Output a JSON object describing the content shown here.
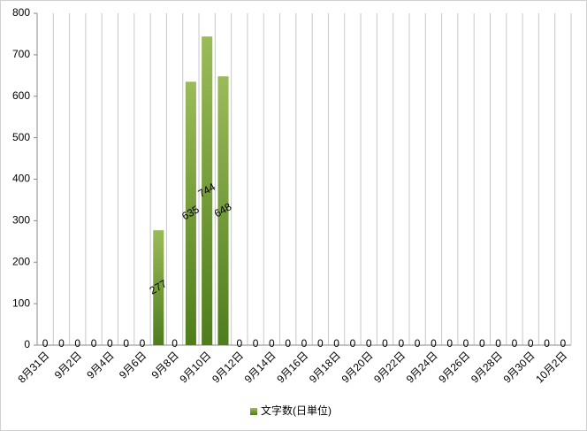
{
  "chart_data": {
    "type": "bar",
    "categories": [
      "8月31日",
      null,
      "9月2日",
      null,
      "9月4日",
      null,
      "9月6日",
      null,
      "9月8日",
      null,
      "9月10日",
      null,
      "9月12日",
      null,
      "9月14日",
      null,
      "9月16日",
      null,
      "9月18日",
      null,
      "9月20日",
      null,
      "9月22日",
      null,
      "9月24日",
      null,
      "9月26日",
      null,
      "9月28日",
      null,
      "9月30日",
      null,
      "10月2日"
    ],
    "series": [
      {
        "name": "文字数(日単位)",
        "color": "#9bbb59",
        "values": [
          0,
          0,
          0,
          0,
          0,
          0,
          0,
          277,
          0,
          635,
          744,
          648,
          0,
          0,
          0,
          0,
          0,
          0,
          0,
          0,
          0,
          0,
          0,
          0,
          0,
          0,
          0,
          0,
          0,
          0,
          0,
          0,
          0
        ]
      }
    ],
    "ylim": [
      0,
      800
    ],
    "yticks": [
      0,
      100,
      200,
      300,
      400,
      500,
      600,
      700,
      800
    ],
    "grid": true,
    "legend": "bottom"
  }
}
